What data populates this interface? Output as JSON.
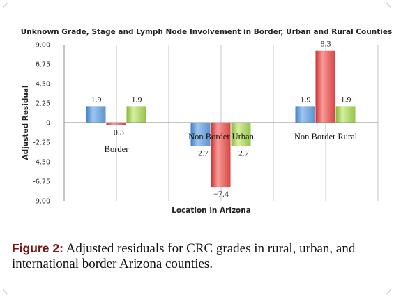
{
  "figure": {
    "caption_label": "Figure 2:",
    "caption_text": " Adjusted residuals for CRC grades in rural, urban, and international border Arizona counties."
  },
  "colors": {
    "series_1": "#5b9bd5",
    "series_2": "#e04a4a",
    "series_3": "#9bcc4b",
    "grid": "#c4c4c4"
  },
  "chart_data": {
    "type": "bar",
    "title": "Unknown Grade, Stage and Lymph Node Involvement in Border, Urban and Rural Counties",
    "xlabel": "Location in Arizona",
    "ylabel": "Adjusted Residual",
    "ylim": [
      -9.0,
      9.0
    ],
    "yticks": [
      "9.00",
      "6.75",
      "4.50",
      "2.25",
      "0",
      "-2.25",
      "-4.50",
      "-6.75",
      "-9.00"
    ],
    "ytick_values": [
      9.0,
      6.75,
      4.5,
      2.25,
      0,
      -2.25,
      -4.5,
      -6.75,
      -9.0
    ],
    "categories": [
      "Border",
      "Non Border Urban",
      "Non Border Rural"
    ],
    "series": [
      {
        "values": [
          1.9,
          -2.7,
          1.9
        ],
        "labels": [
          "1.9",
          "−2.7",
          "1.9"
        ]
      },
      {
        "values": [
          -0.3,
          -7.4,
          8.3
        ],
        "labels": [
          "−0.3",
          "−7.4",
          "8.3"
        ]
      },
      {
        "values": [
          1.9,
          -2.7,
          1.9
        ],
        "labels": [
          "1.9",
          "−2.7",
          "1.9"
        ]
      }
    ],
    "grid": "vertical",
    "legend": "none"
  }
}
